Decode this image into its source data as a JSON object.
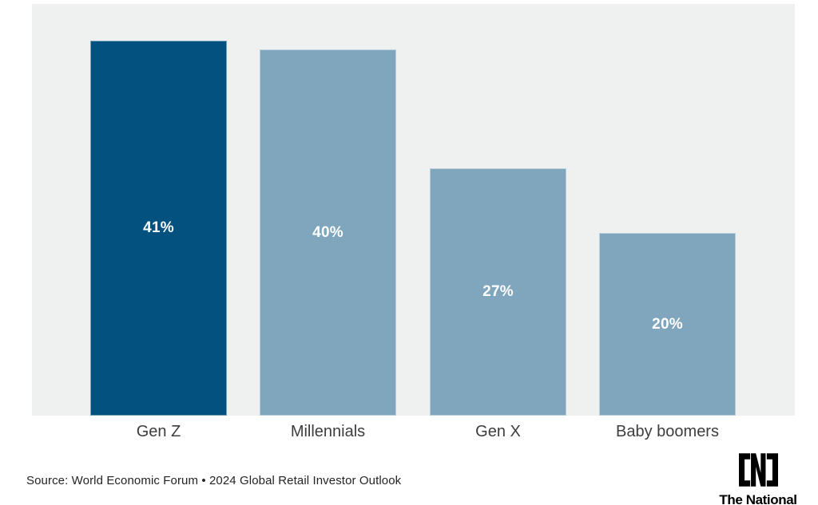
{
  "chart_data": {
    "type": "bar",
    "categories": [
      "Gen Z",
      "Millennials",
      "Gen X",
      "Baby boomers"
    ],
    "values": [
      41,
      40,
      27,
      20
    ],
    "value_labels": [
      "41%",
      "40%",
      "27%",
      "20%"
    ],
    "bar_colors": [
      "#02517e",
      "#7fa6bd",
      "#7fa6bd",
      "#7fa6bd"
    ],
    "title": "",
    "xlabel": "",
    "ylabel": "",
    "ylim": [
      0,
      45
    ],
    "grid": false,
    "legend": "none",
    "value_label_position": "center-inside",
    "category_label_position": "below-plot"
  },
  "footer": {
    "source": "Source: World Economic Forum • 2024 Global Retail Investor Outlook",
    "brand": {
      "name": "The National",
      "logo_icon": "bracket-n-logo"
    }
  },
  "colors": {
    "page_background": "#ffffff",
    "panel_background": "#eff1f1",
    "highlight_bar": "#02517e",
    "default_bar": "#7fa6bd",
    "value_label_text": "#ffffff",
    "category_label_text": "#3d3d3d",
    "source_text": "#242424",
    "logo": "#000000"
  }
}
